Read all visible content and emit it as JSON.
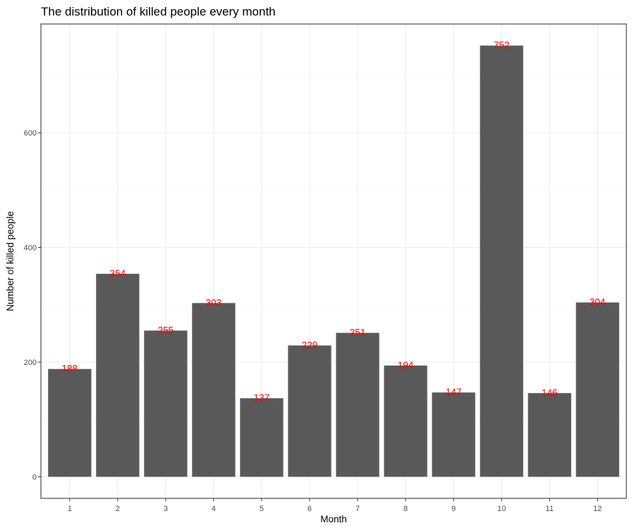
{
  "chart_data": {
    "type": "bar",
    "title": "The distribution of killed people every month",
    "xlabel": "Month",
    "ylabel": "Number of killed people",
    "categories": [
      "1",
      "2",
      "3",
      "4",
      "5",
      "6",
      "7",
      "8",
      "9",
      "10",
      "11",
      "12"
    ],
    "values": [
      188,
      354,
      255,
      303,
      137,
      229,
      251,
      194,
      147,
      752,
      146,
      304
    ],
    "ylim": [
      -37.6,
      789.6
    ],
    "yticks": [
      0,
      200,
      400,
      600
    ],
    "ytick_labels": [
      "0",
      "200",
      "400",
      "600"
    ],
    "y_minor_ticks": [
      100,
      300,
      500,
      700
    ],
    "grid": true,
    "legend": "none",
    "colors": {
      "bar_fill": "#595959",
      "data_label": "#ff0000",
      "panel_background": "#ffffff",
      "panel_border": "#333333",
      "grid_major": "#ebebeb",
      "grid_minor": "#f5f5f5"
    }
  }
}
